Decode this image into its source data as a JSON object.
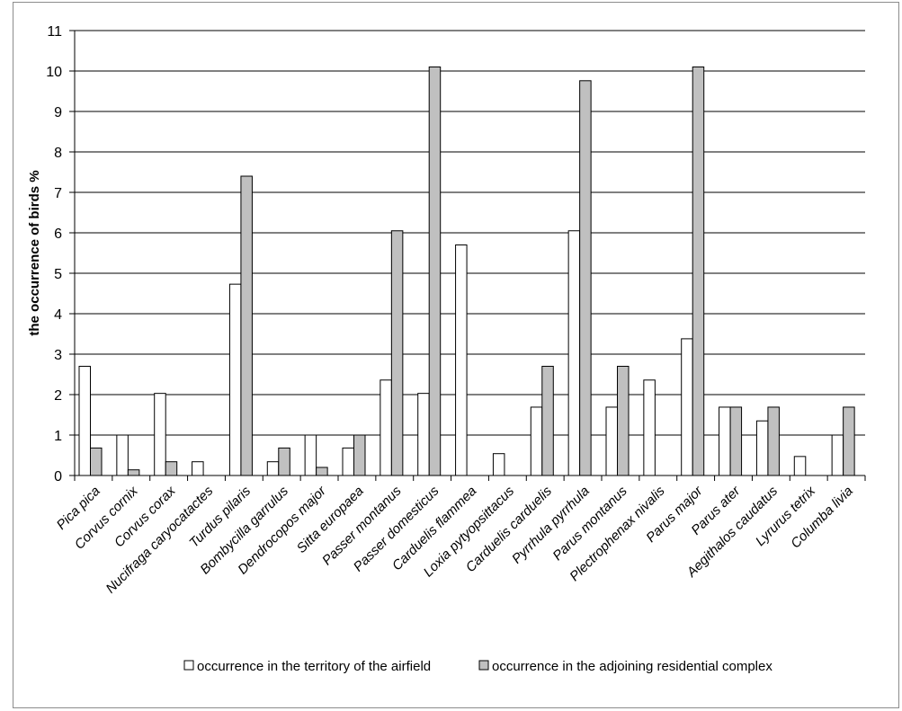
{
  "chart_data": {
    "type": "bar",
    "title": "",
    "xlabel": "",
    "ylabel": "the occurrence of birds %",
    "ylim": [
      0,
      11
    ],
    "yticks": [
      "0",
      "1",
      "2",
      "3",
      "4",
      "5",
      "6",
      "7",
      "8",
      "9",
      "10",
      "11"
    ],
    "grid": "horizontal",
    "legend_position": "bottom",
    "categories": [
      "Pica pica",
      "Corvus cornix",
      "Corvus corax",
      "Nucifraga caryocatactes",
      "Turdus pilaris",
      "Bombycilla garrulus",
      "Dendrocopos major",
      "Sitta europaea",
      "Passer montanus",
      "Passer domesticus",
      "Carduelis flammea",
      "Loxia pytyopsittacus",
      "Carduelis carduelis",
      "Pyrrhula pyrrhula",
      "Parus montanus",
      "Plectrophenax nivalis",
      "Parus major",
      "Parus ater",
      "Aegithalos caudatus",
      "Lyrurus tetrix",
      "Columba livia"
    ],
    "series": [
      {
        "name": "occurrence in the territory of the airfield",
        "color": "#ffffff",
        "values": [
          2.7,
          1.0,
          2.03,
          0.34,
          4.73,
          0.34,
          1.0,
          0.68,
          2.36,
          2.03,
          5.7,
          0.54,
          1.69,
          6.05,
          1.69,
          2.36,
          3.38,
          1.69,
          1.35,
          0.47,
          1.0
        ]
      },
      {
        "name": "occurrence in the adjoining residential complex",
        "color": "#c0c0c0",
        "values": [
          0.68,
          0.14,
          0.34,
          0,
          7.4,
          0.68,
          0.2,
          1.0,
          6.05,
          10.1,
          0,
          0,
          2.7,
          9.76,
          2.7,
          0,
          10.1,
          1.69,
          1.69,
          0,
          1.69
        ]
      }
    ]
  }
}
